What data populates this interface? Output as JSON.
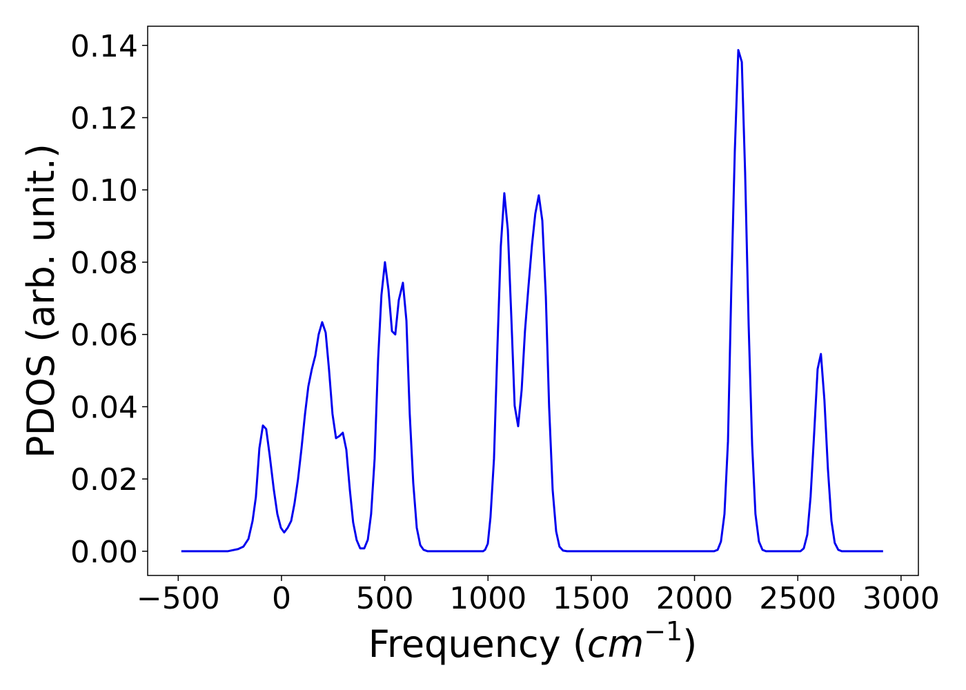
{
  "chart_data": {
    "type": "line",
    "xlabel": [
      "Frequency (",
      "cm",
      "−1",
      ")"
    ],
    "ylabel": "PDOS (arb. unit.)",
    "xlim": [
      -648,
      3084
    ],
    "ylim": [
      -0.0067,
      0.1453
    ],
    "xticks": [
      {
        "value": -500,
        "label": "−500"
      },
      0,
      500,
      1000,
      1500,
      2000,
      2500,
      3000
    ],
    "yticks": [
      {
        "value": 0,
        "label": "0.00"
      },
      {
        "value": 0.02,
        "label": "0.02"
      },
      {
        "value": 0.04,
        "label": "0.04"
      },
      {
        "value": 0.06,
        "label": "0.06"
      },
      {
        "value": 0.08,
        "label": "0.08"
      },
      {
        "value": 0.1,
        "label": "0.10"
      },
      {
        "value": 0.12,
        "label": "0.12"
      },
      {
        "value": 0.14,
        "label": "0.14"
      }
    ],
    "grid": false,
    "series": [
      {
        "color": "#0000ee",
        "x": [
          -485,
          -261,
          -210,
          -184,
          -160,
          -140,
          -124,
          -107,
          -90,
          -74,
          -57,
          -37,
          -20,
          -3,
          13,
          30,
          47,
          63,
          80,
          97,
          114,
          130,
          147,
          164,
          180,
          197,
          214,
          230,
          247,
          264,
          281,
          297,
          314,
          331,
          347,
          364,
          381,
          401,
          418,
          434,
          451,
          468,
          484,
          501,
          518,
          535,
          551,
          568,
          588,
          605,
          621,
          638,
          655,
          672,
          688,
          708,
          976,
          986,
          999,
          1012,
          1029,
          1046,
          1062,
          1079,
          1096,
          1113,
          1129,
          1146,
          1163,
          1179,
          1196,
          1213,
          1229,
          1246,
          1263,
          1280,
          1296,
          1313,
          1330,
          1346,
          1363,
          1383,
          2095,
          2112,
          2128,
          2145,
          2162,
          2178,
          2195,
          2212,
          2229,
          2245,
          2262,
          2279,
          2295,
          2312,
          2329,
          2346,
          2513,
          2529,
          2546,
          2562,
          2579,
          2596,
          2612,
          2629,
          2646,
          2663,
          2679,
          2696,
          2713,
          2913
        ],
        "values": [
          0,
          0,
          0.0006,
          0.0013,
          0.0034,
          0.0084,
          0.015,
          0.0285,
          0.0348,
          0.0338,
          0.0265,
          0.017,
          0.0103,
          0.0065,
          0.0052,
          0.0065,
          0.0084,
          0.0132,
          0.0199,
          0.0285,
          0.038,
          0.0456,
          0.0504,
          0.0542,
          0.06,
          0.0634,
          0.0605,
          0.0504,
          0.038,
          0.0313,
          0.0319,
          0.0328,
          0.0281,
          0.017,
          0.008,
          0.0031,
          0.0008,
          0.0008,
          0.0032,
          0.0103,
          0.0256,
          0.0533,
          0.0709,
          0.08,
          0.0724,
          0.0609,
          0.06,
          0.0695,
          0.0743,
          0.0638,
          0.038,
          0.0189,
          0.0065,
          0.0017,
          0.0004,
          0,
          0,
          0.0004,
          0.0021,
          0.0094,
          0.0256,
          0.0571,
          0.0844,
          0.0991,
          0.089,
          0.0647,
          0.0403,
          0.0346,
          0.0447,
          0.0609,
          0.0733,
          0.0848,
          0.0934,
          0.0985,
          0.0915,
          0.0705,
          0.0399,
          0.017,
          0.0055,
          0.0013,
          0.0002,
          0,
          0,
          0.0004,
          0.0027,
          0.0103,
          0.0304,
          0.0724,
          0.1106,
          0.1387,
          0.1354,
          0.1048,
          0.0628,
          0.0294,
          0.0103,
          0.0027,
          0.0004,
          0,
          0,
          0.0008,
          0.0046,
          0.0151,
          0.0323,
          0.0504,
          0.0546,
          0.0418,
          0.0227,
          0.0084,
          0.0023,
          0.0004,
          0,
          0
        ]
      }
    ]
  }
}
